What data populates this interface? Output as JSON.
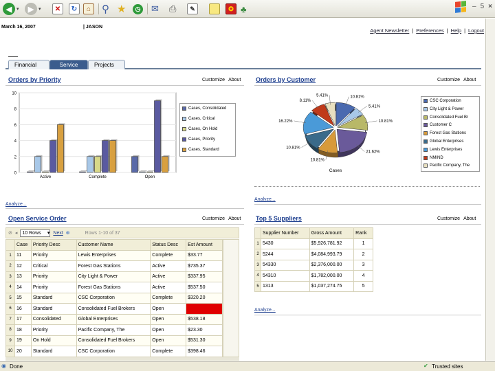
{
  "browser": {
    "minimize_label": "–",
    "restore_label": "5",
    "close_label": "×",
    "status_text": "Done",
    "zone_text": "Trusted sites"
  },
  "header": {
    "date": "March 16, 2007",
    "user": "| JASON",
    "links": [
      "Agent Newsletter",
      "|",
      "Preferences",
      "|",
      "Help",
      "|",
      "Logout"
    ]
  },
  "tabs": [
    {
      "label": "Financial",
      "active": false
    },
    {
      "label": "Service",
      "active": true
    },
    {
      "label": "Projects",
      "active": false
    }
  ],
  "portlets": {
    "priority": {
      "title": "Orders by Priority",
      "customize": "Customize",
      "about": "About",
      "analyze": "Analyze..."
    },
    "customer": {
      "title": "Orders by Customer",
      "customize": "Customize",
      "about": "About",
      "analyze": "Analyze..."
    },
    "open_orders": {
      "title": "Open Service Order",
      "customize": "Customize",
      "about": "About"
    },
    "suppliers": {
      "title": "Top 5 Suppliers",
      "customize": "Customize",
      "about": "About",
      "analyze": "Analyze..."
    }
  },
  "priority_chart": {
    "chart_data": {
      "type": "bar",
      "categories": [
        "Active",
        "Complete",
        "Open"
      ],
      "ylim": [
        0,
        10
      ],
      "yticks": [
        0,
        2,
        4,
        6,
        8,
        10
      ],
      "series": [
        {
          "name": "Cases, Consolidated",
          "color": "#5a6aa8",
          "values": [
            0,
            0,
            2
          ]
        },
        {
          "name": "Cases, Critical",
          "color": "#a8c8e8",
          "values": [
            2,
            2,
            0
          ]
        },
        {
          "name": "Cases, On Hold",
          "color": "#d8d888",
          "values": [
            0,
            2,
            0
          ]
        },
        {
          "name": "Cases, Priority",
          "color": "#5a5aa0",
          "values": [
            4,
            4,
            9
          ]
        },
        {
          "name": "Cases, Standard",
          "color": "#d8a040",
          "values": [
            6,
            4,
            2
          ]
        }
      ]
    }
  },
  "customer_chart": {
    "chart_data": {
      "type": "pie",
      "xlabel": "Cases",
      "slices": [
        {
          "label": "10.81%",
          "color": "#4a6ab0",
          "value": 10.81
        },
        {
          "label": "5.41%",
          "color": "#a8c8e8",
          "value": 5.41
        },
        {
          "label": "10.81%",
          "color": "#b8b868",
          "value": 10.81
        },
        {
          "label": "21.62%",
          "color": "#6a5a9a",
          "value": 21.62
        },
        {
          "label": "10.81%",
          "color": "#d89a3a",
          "value": 10.81
        },
        {
          "label": "10.81%",
          "color": "#3a6a8a",
          "value": 10.81
        },
        {
          "label": "16.22%",
          "color": "#4a9ad8",
          "value": 16.22
        },
        {
          "label": "8.11%",
          "color": "#c03a1a",
          "value": 8.11
        },
        {
          "label": "5.41%",
          "color": "#e8e0c0",
          "value": 5.41
        }
      ],
      "legend": [
        {
          "label": "CSC Corporation",
          "color": "#4a6ab0"
        },
        {
          "label": "City Light & Power",
          "color": "#a8c8e8"
        },
        {
          "label": "Consolidated Fuel Br",
          "color": "#b8b868"
        },
        {
          "label": "Customer C",
          "color": "#6a5a9a"
        },
        {
          "label": "Forest Gas Stations",
          "color": "#d89a3a"
        },
        {
          "label": "Global Enterprises",
          "color": "#3a6a8a"
        },
        {
          "label": "Lewis Enterprises",
          "color": "#4a9ad8"
        },
        {
          "label": "NMIND",
          "color": "#c03a1a"
        },
        {
          "label": "Pacific Company, The",
          "color": "#e8e0c0"
        }
      ]
    }
  },
  "open_orders": {
    "toolbar": {
      "rows_label": "10 Rows",
      "next_label": "Next",
      "range_label": "Rows 1-10 of 37"
    },
    "columns": [
      "Case",
      "Priority Desc",
      "Customer Name",
      "Status Desc",
      "Est Amount"
    ],
    "rows": [
      {
        "n": "1",
        "cells": [
          "11",
          "Priority",
          "Lewis Enterprises",
          "Complete",
          "$33.77"
        ]
      },
      {
        "n": "2",
        "cells": [
          "12",
          "Critical",
          "Forest Gas Stations",
          "Active",
          "$735.37"
        ]
      },
      {
        "n": "3",
        "cells": [
          "13",
          "Priority",
          "City Light & Power",
          "Active",
          "$337.95"
        ]
      },
      {
        "n": "4",
        "cells": [
          "14",
          "Priority",
          "Forest Gas Stations",
          "Active",
          "$537.50"
        ]
      },
      {
        "n": "5",
        "cells": [
          "15",
          "Standard",
          "CSC Corporation",
          "Complete",
          "$320.20"
        ]
      },
      {
        "n": "6",
        "cells": [
          "16",
          "Standard",
          "Consolidated Fuel Brokers",
          "Open",
          ""
        ]
      },
      {
        "n": "7",
        "cells": [
          "17",
          "Consolidated",
          "Global Enterprises",
          "Open",
          "$538.18"
        ]
      },
      {
        "n": "8",
        "cells": [
          "18",
          "Priority",
          "Pacific Company, The",
          "Open",
          "$23.30"
        ]
      },
      {
        "n": "9",
        "cells": [
          "19",
          "On Hold",
          "Consolidated Fuel Brokers",
          "Open",
          "$531.30"
        ]
      },
      {
        "n": "10",
        "cells": [
          "20",
          "Standard",
          "CSC Corporation",
          "Complete",
          "$398.46"
        ]
      }
    ]
  },
  "suppliers": {
    "columns": [
      "Supplier Number",
      "Gross Amount",
      "Rank"
    ],
    "rows": [
      {
        "n": "1",
        "cells": [
          "5430",
          "$5,926,781.92",
          "1"
        ]
      },
      {
        "n": "2",
        "cells": [
          "5244",
          "$4,084,993.79",
          "2"
        ]
      },
      {
        "n": "3",
        "cells": [
          "54330",
          "$2,376,000.00",
          "3"
        ]
      },
      {
        "n": "4",
        "cells": [
          "54310",
          "$1,782,000.00",
          "4"
        ]
      },
      {
        "n": "5",
        "cells": [
          "1313",
          "$1,037,274.75",
          "5"
        ]
      }
    ]
  },
  "colors": {
    "accent": "#1e3f8f",
    "tab_active": "#3b5c8d",
    "hot_cell": "#e00000"
  }
}
